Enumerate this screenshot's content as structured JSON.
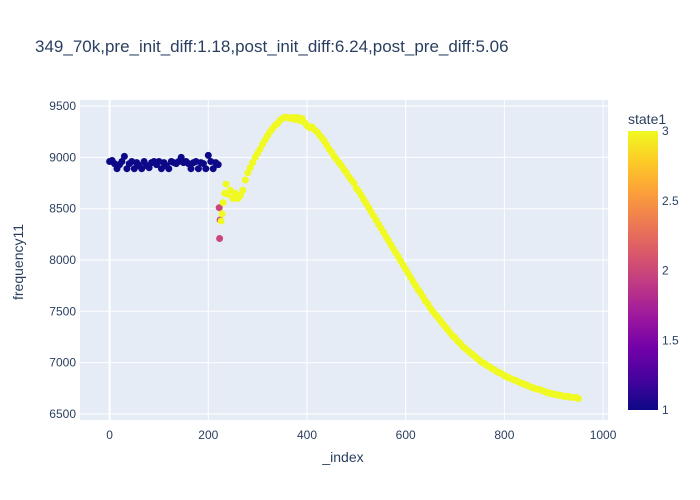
{
  "chart_data": {
    "type": "scatter",
    "title": "349_70k,pre_init_diff:1.18,post_init_diff:6.24,post_pre_diff:5.06",
    "xlabel": "_index",
    "ylabel": "frequency11",
    "xlim": [
      -60,
      1010
    ],
    "ylim": [
      6440,
      9560
    ],
    "x_ticks": [
      0,
      200,
      400,
      600,
      800,
      1000
    ],
    "y_ticks": [
      6500,
      7000,
      7500,
      8000,
      8500,
      9000,
      9500
    ],
    "grid": true,
    "colorbar": {
      "title": "state1",
      "range": [
        1,
        3
      ],
      "ticks": [
        1,
        1.5,
        2,
        2.5,
        3
      ],
      "colors": [
        "#0d0887",
        "#46039f",
        "#7201a8",
        "#9c179e",
        "#bd3786",
        "#d8576b",
        "#ed7953",
        "#fb9f3a",
        "#fdca26",
        "#f0f921"
      ]
    },
    "series": [
      {
        "state": 1,
        "x": [
          0,
          5,
          10,
          15,
          20,
          25,
          30,
          35,
          40,
          45,
          50,
          55,
          60,
          65,
          70,
          75,
          80,
          85,
          90,
          95,
          100,
          105,
          110,
          115,
          120,
          125,
          130,
          135,
          140,
          145,
          150,
          155,
          160,
          165,
          170,
          175,
          180,
          185,
          190,
          195,
          200,
          205,
          210,
          215,
          220
        ],
        "y": [
          8960,
          8970,
          8940,
          8890,
          8930,
          8960,
          9010,
          8890,
          8940,
          8960,
          8890,
          8950,
          8920,
          8890,
          8960,
          8920,
          8900,
          8950,
          8960,
          8930,
          8960,
          8890,
          8950,
          8920,
          8890,
          8960,
          8950,
          8940,
          8960,
          9000,
          8950,
          8960,
          8940,
          8890,
          8950,
          8960,
          8890,
          8950,
          8940,
          8890,
          9020,
          8960,
          8890,
          8950,
          8930
        ]
      },
      {
        "state": 2,
        "x": [
          222,
          223,
          224
        ],
        "y": [
          8510,
          8210,
          8390
        ]
      },
      {
        "state": 3,
        "x": [
          226,
          228,
          230,
          233,
          236,
          240,
          245,
          250,
          255,
          260,
          265,
          270,
          275,
          280,
          285,
          290,
          295,
          300,
          305,
          310,
          315,
          320,
          325,
          330,
          335,
          340,
          345,
          350,
          355,
          360,
          365,
          370,
          375,
          380,
          385,
          390,
          395,
          400,
          405,
          410,
          415,
          420,
          425,
          430,
          435,
          440,
          445,
          450,
          455,
          460,
          465,
          470,
          475,
          480,
          485,
          490,
          495,
          500,
          505,
          510,
          515,
          520,
          525,
          530,
          535,
          540,
          545,
          550,
          555,
          560,
          565,
          570,
          575,
          580,
          585,
          590,
          595,
          600,
          605,
          610,
          615,
          620,
          625,
          630,
          635,
          640,
          645,
          650,
          655,
          660,
          665,
          670,
          675,
          680,
          685,
          690,
          695,
          700,
          705,
          710,
          715,
          720,
          725,
          730,
          735,
          740,
          745,
          750,
          755,
          760,
          765,
          770,
          775,
          780,
          785,
          790,
          795,
          800,
          805,
          810,
          815,
          820,
          825,
          830,
          835,
          840,
          845,
          850,
          855,
          860,
          865,
          870,
          875,
          880,
          885,
          890,
          895,
          900,
          905,
          910,
          915,
          920,
          925,
          930,
          935,
          940,
          945,
          950
        ],
        "y": [
          8380,
          8450,
          8560,
          8650,
          8740,
          8640,
          8680,
          8600,
          8650,
          8600,
          8630,
          8680,
          8780,
          8850,
          8900,
          8950,
          9000,
          9040,
          9080,
          9130,
          9170,
          9210,
          9250,
          9280,
          9310,
          9330,
          9360,
          9380,
          9390,
          9390,
          9380,
          9390,
          9370,
          9390,
          9360,
          9380,
          9340,
          9310,
          9290,
          9300,
          9270,
          9250,
          9220,
          9190,
          9160,
          9120,
          9080,
          9050,
          9010,
          8980,
          8950,
          8920,
          8880,
          8850,
          8810,
          8780,
          8750,
          8700,
          8670,
          8630,
          8590,
          8550,
          8510,
          8470,
          8430,
          8390,
          8350,
          8310,
          8270,
          8230,
          8190,
          8150,
          8110,
          8070,
          8030,
          7990,
          7950,
          7910,
          7870,
          7830,
          7790,
          7750,
          7710,
          7680,
          7640,
          7600,
          7570,
          7530,
          7500,
          7470,
          7440,
          7410,
          7380,
          7350,
          7320,
          7290,
          7260,
          7240,
          7210,
          7190,
          7160,
          7140,
          7120,
          7100,
          7080,
          7060,
          7040,
          7020,
          7000,
          6990,
          6970,
          6960,
          6940,
          6930,
          6910,
          6900,
          6890,
          6870,
          6860,
          6850,
          6840,
          6830,
          6820,
          6810,
          6800,
          6790,
          6780,
          6770,
          6760,
          6750,
          6740,
          6740,
          6730,
          6720,
          6710,
          6700,
          6700,
          6690,
          6690,
          6680,
          6680,
          6670,
          6670,
          6670,
          6660,
          6660,
          6660,
          6650
        ]
      }
    ]
  }
}
